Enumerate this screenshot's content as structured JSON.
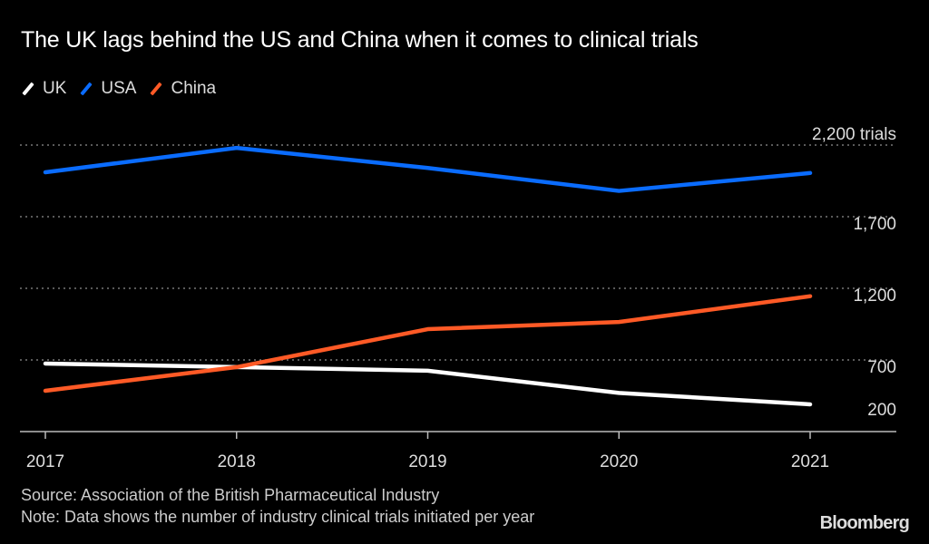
{
  "chart_data": {
    "type": "line",
    "title": "The UK lags behind the US and China when it comes to clinical trials",
    "x": [
      "2017",
      "2018",
      "2019",
      "2020",
      "2021"
    ],
    "series": [
      {
        "name": "UK",
        "color": "#ffffff",
        "values": [
          675,
          650,
          625,
          470,
          390
        ]
      },
      {
        "name": "USA",
        "color": "#0a6cff",
        "values": [
          2010,
          2180,
          2040,
          1880,
          2005
        ]
      },
      {
        "name": "China",
        "color": "#ff5a26",
        "values": [
          485,
          650,
          915,
          965,
          1145
        ]
      }
    ],
    "ylim": [
      200,
      2200
    ],
    "yticks": [
      200,
      700,
      1200,
      1700,
      2200
    ],
    "ytick_labels": [
      "200",
      "700",
      "1,200",
      "1,700",
      "2,200 trials"
    ],
    "xlabel": "",
    "ylabel": "trials",
    "grid": true,
    "legend_position": "top-left"
  },
  "footer": {
    "source": "Source: Association of the British Pharmaceutical Industry",
    "note": "Note: Data shows the number of industry clinical trials initiated per year"
  },
  "brand": "Bloomberg"
}
